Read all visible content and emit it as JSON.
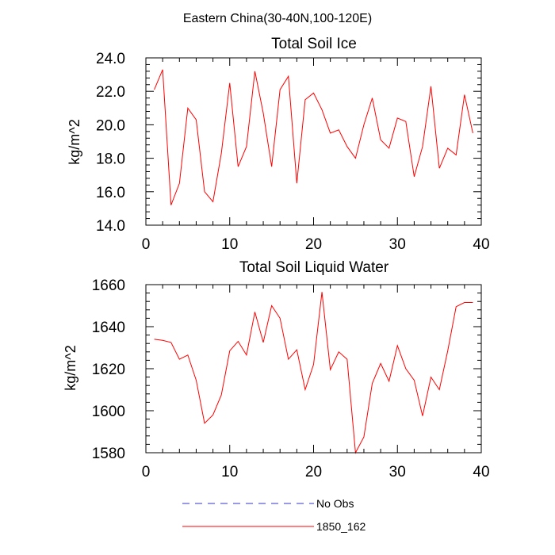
{
  "figure": {
    "suptitle": "Eastern China(30-40N,100-120E)"
  },
  "chart_data": [
    {
      "type": "line",
      "title": "Total Soil Ice",
      "xlabel": "",
      "ylabel": "kg/m^2",
      "xlim": [
        0,
        40
      ],
      "ylim": [
        14,
        24
      ],
      "xticks": [
        0,
        10,
        20,
        30,
        40
      ],
      "xtick_labels": [
        "0",
        "10",
        "20",
        "30",
        "40"
      ],
      "yticks": [
        14,
        16,
        18,
        20,
        22,
        24
      ],
      "ytick_labels": [
        "14.0",
        "16.0",
        "18.0",
        "20.0",
        "22.0",
        "24.0"
      ],
      "grid": false,
      "series": [
        {
          "name": "1850_162",
          "color": "#ff0000",
          "x": [
            1,
            2,
            3,
            4,
            5,
            6,
            7,
            8,
            9,
            10,
            11,
            12,
            13,
            14,
            15,
            16,
            17,
            18,
            19,
            20,
            21,
            22,
            23,
            24,
            25,
            26,
            27,
            28,
            29,
            30,
            31,
            32,
            33,
            34,
            35,
            36,
            37,
            38,
            39
          ],
          "y": [
            22.1,
            23.3,
            15.2,
            16.5,
            21.0,
            20.3,
            16.0,
            15.4,
            18.3,
            22.5,
            17.5,
            18.7,
            23.2,
            20.7,
            17.5,
            22.1,
            22.9,
            16.5,
            21.5,
            21.9,
            20.9,
            19.5,
            19.7,
            18.7,
            18.0,
            20.0,
            21.6,
            19.1,
            18.6,
            20.4,
            20.2,
            16.9,
            18.7,
            22.3,
            17.4,
            18.6,
            18.2,
            21.8,
            19.5
          ]
        }
      ]
    },
    {
      "type": "line",
      "title": "Total Soil Liquid Water",
      "xlabel": "",
      "ylabel": "kg/m^2",
      "xlim": [
        0,
        40
      ],
      "ylim": [
        1580,
        1660
      ],
      "xticks": [
        0,
        10,
        20,
        30,
        40
      ],
      "xtick_labels": [
        "0",
        "10",
        "20",
        "30",
        "40"
      ],
      "yticks": [
        1580,
        1600,
        1620,
        1640,
        1660
      ],
      "ytick_labels": [
        "1580",
        "1600",
        "1620",
        "1640",
        "1660"
      ],
      "grid": false,
      "series": [
        {
          "name": "1850_162",
          "color": "#ff0000",
          "x": [
            1,
            2,
            3,
            4,
            5,
            6,
            7,
            8,
            9,
            10,
            11,
            12,
            13,
            14,
            15,
            16,
            17,
            18,
            19,
            20,
            21,
            22,
            23,
            24,
            25,
            26,
            27,
            28,
            29,
            30,
            31,
            32,
            33,
            34,
            35,
            36,
            37,
            38,
            39
          ],
          "y": [
            1634,
            1633.5,
            1632.5,
            1624.5,
            1626.5,
            1614.5,
            1594,
            1598,
            1607.5,
            1628.5,
            1633,
            1626.5,
            1647,
            1632.5,
            1650,
            1644,
            1624.5,
            1629,
            1610,
            1622,
            1656.5,
            1619.5,
            1628,
            1624.5,
            1580,
            1587.5,
            1613,
            1622.5,
            1614,
            1631,
            1620,
            1614.5,
            1597.5,
            1616,
            1610,
            1628.5,
            1649.5,
            1651.5,
            1651.5
          ]
        }
      ]
    }
  ],
  "legend": {
    "placement": "bottom-center",
    "entries": [
      {
        "label": "No Obs",
        "color": "#3333cc",
        "style": "dashed"
      },
      {
        "label": "1850_162",
        "color": "#ff0000",
        "style": "solid"
      }
    ]
  }
}
